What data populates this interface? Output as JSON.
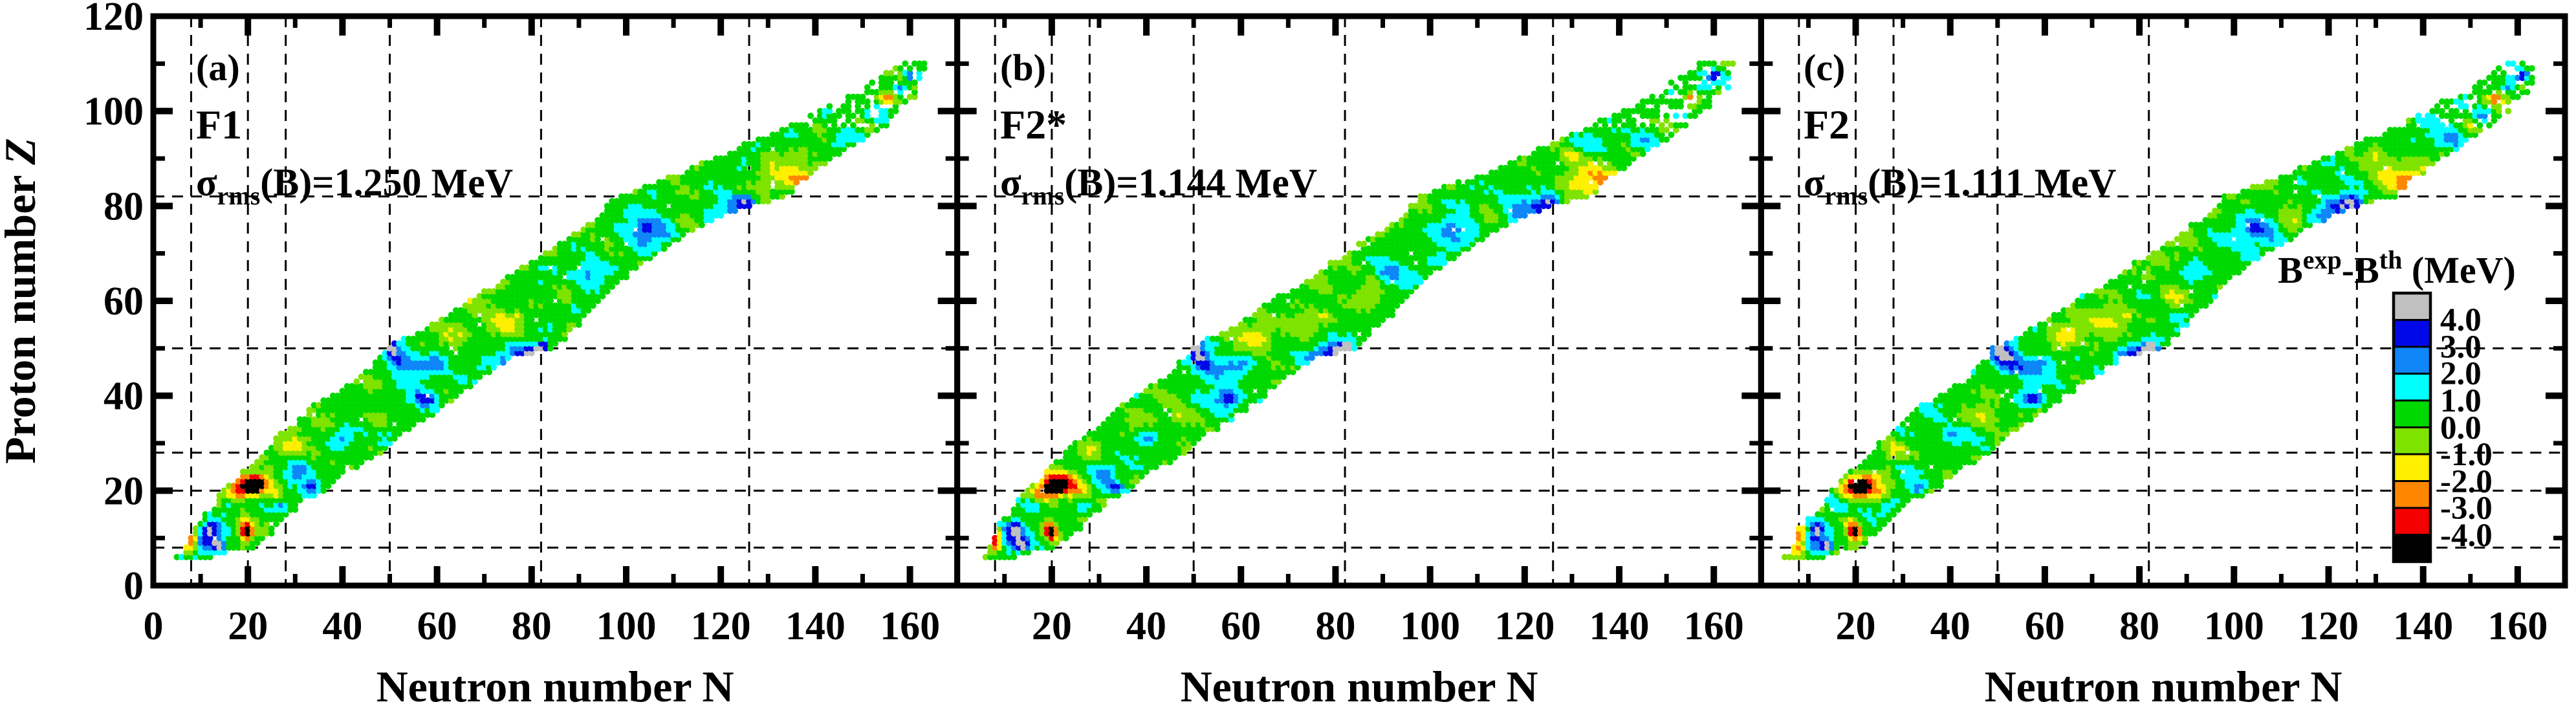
{
  "figure": {
    "kind": "nuclear mass-table residuals chart",
    "background": "#ffffff"
  },
  "panels": [
    {
      "tag": "(a)",
      "model": "F1",
      "sigma": {
        "symbol": "σ",
        "sub": "rms",
        "rest": "(B)=1.250 MeV"
      }
    },
    {
      "tag": "(b)",
      "model": "F2*",
      "sigma": {
        "symbol": "σ",
        "sub": "rms",
        "rest": "(B)=1.144 MeV"
      }
    },
    {
      "tag": "(c)",
      "model": "F2",
      "sigma": {
        "symbol": "σ",
        "sub": "rms",
        "rest": "(B)=1.111 MeV"
      }
    }
  ],
  "axes": {
    "x": {
      "label_main": "Neutron number ",
      "label_symbol": "N",
      "range": [
        0,
        170
      ],
      "tick_labels": [
        "0",
        "20",
        "40",
        "60",
        "80",
        "100",
        "120",
        "140",
        "160"
      ],
      "major_tick_values": [
        0,
        20,
        40,
        60,
        80,
        100,
        120,
        140,
        160
      ],
      "minor_tick_values": [
        10,
        30,
        50,
        70,
        90,
        110,
        130,
        150
      ],
      "gridlines": [
        8,
        20,
        28,
        50,
        82,
        126
      ]
    },
    "y": {
      "label_main": "Proton number ",
      "label_symbol": "Z",
      "range": [
        0,
        120
      ],
      "tick_labels": [
        "0",
        "20",
        "40",
        "60",
        "80",
        "100",
        "120"
      ],
      "major_tick_values": [
        20,
        40,
        60,
        80,
        100
      ],
      "minor_tick_values": [
        10,
        30,
        50,
        70,
        90,
        110
      ],
      "gridlines": [
        8,
        20,
        28,
        50,
        82
      ]
    }
  },
  "colorbar": {
    "title": {
      "base1": "B",
      "sup1": "exp",
      "base2": "-B",
      "sup2": "th",
      "base3": " (MeV)"
    },
    "boundary_labels": [
      "4.0",
      "3.0",
      "2.0",
      "1.0",
      "0.0",
      "-1.0",
      "-2.0",
      "-3.0",
      "-4.0"
    ]
  },
  "chart_data": {
    "type": "scatter",
    "title": "",
    "xlabel": "Neutron number N",
    "ylabel": "Proton number Z",
    "value_label": "Bexp-Bth (MeV)",
    "xlim": [
      0,
      170
    ],
    "ylim": [
      0,
      120
    ],
    "grid": "dashed lines at magic numbers",
    "legend_position": "inset lower-right of panel (c)",
    "magic_numbers": {
      "N": [
        8,
        20,
        28,
        50,
        82,
        126
      ],
      "Z": [
        8,
        20,
        28,
        50,
        82
      ]
    },
    "panels": [
      {
        "tag": "(a)",
        "model": "F1",
        "sigma_rms_MeV": 1.25
      },
      {
        "tag": "(b)",
        "model": "F2*",
        "sigma_rms_MeV": 1.144
      },
      {
        "tag": "(c)",
        "model": "F2",
        "sigma_rms_MeV": 1.111
      }
    ],
    "color_bins": {
      "boundaries_MeV": [
        -4.0,
        -3.0,
        -2.0,
        -1.0,
        0.0,
        1.0,
        2.0,
        3.0,
        4.0
      ],
      "colors_low_to_high": [
        "#000000",
        "#f40000",
        "#ff8600",
        "#ffef00",
        "#7fe300",
        "#00d900",
        "#00ffff",
        "#0e86f8",
        "#0008e8",
        "#c0c0c0"
      ]
    },
    "band_NminNmax_by_Z": [
      [
        6,
        6,
        12
      ],
      [
        7,
        7,
        15
      ],
      [
        8,
        7,
        20
      ],
      [
        10,
        8,
        22
      ],
      [
        12,
        9,
        25
      ],
      [
        14,
        11,
        27
      ],
      [
        16,
        13,
        29
      ],
      [
        18,
        14,
        31
      ],
      [
        20,
        15,
        36
      ],
      [
        22,
        18,
        38
      ],
      [
        24,
        20,
        40
      ],
      [
        26,
        22,
        44
      ],
      [
        28,
        24,
        48
      ],
      [
        30,
        26,
        50
      ],
      [
        32,
        28,
        52
      ],
      [
        34,
        31,
        55
      ],
      [
        36,
        33,
        58
      ],
      [
        38,
        35,
        61
      ],
      [
        40,
        38,
        64
      ],
      [
        42,
        42,
        66
      ],
      [
        44,
        45,
        69
      ],
      [
        46,
        47,
        72
      ],
      [
        48,
        49,
        75
      ],
      [
        50,
        50,
        84
      ],
      [
        52,
        54,
        86
      ],
      [
        54,
        58,
        88
      ],
      [
        56,
        61,
        90
      ],
      [
        58,
        64,
        92
      ],
      [
        60,
        67,
        94
      ],
      [
        62,
        71,
        96
      ],
      [
        64,
        74,
        98
      ],
      [
        66,
        77,
        100
      ],
      [
        68,
        80,
        103
      ],
      [
        70,
        83,
        106
      ],
      [
        72,
        86,
        109
      ],
      [
        74,
        89,
        112
      ],
      [
        76,
        92,
        116
      ],
      [
        78,
        95,
        120
      ],
      [
        80,
        97,
        125
      ],
      [
        82,
        99,
        133
      ],
      [
        84,
        104,
        135
      ],
      [
        86,
        110,
        137
      ],
      [
        88,
        115,
        140
      ],
      [
        90,
        119,
        143
      ],
      [
        92,
        124,
        146
      ],
      [
        94,
        128,
        149
      ],
      [
        96,
        133,
        152
      ],
      [
        98,
        137,
        155
      ],
      [
        100,
        141,
        157
      ],
      [
        102,
        145,
        159
      ],
      [
        104,
        149,
        161
      ],
      [
        106,
        152,
        162
      ],
      [
        108,
        155,
        163
      ],
      [
        110,
        158,
        163
      ]
    ],
    "base_value_MeV": 0.5,
    "deviation_features_NZsnszAmp": [
      [
        11.5,
        10.5,
        2.1,
        2.1,
        3.6
      ],
      [
        12.5,
        12.5,
        1.0,
        1.0,
        2.0
      ],
      [
        14,
        8.5,
        0.8,
        0.7,
        4.6
      ],
      [
        8.5,
        10.5,
        1.1,
        1.4,
        -3.6
      ],
      [
        8,
        8,
        1.0,
        0.9,
        -2.0
      ],
      [
        20,
        11,
        0.8,
        0.9,
        -5.8
      ],
      [
        19.5,
        12.5,
        1.1,
        1.1,
        -3.4
      ],
      [
        16,
        17,
        1.5,
        1.3,
        2.0
      ],
      [
        21,
        20.5,
        1.1,
        0.9,
        -5.6
      ],
      [
        20,
        21.5,
        1.7,
        1.5,
        -3.6
      ],
      [
        23,
        22,
        1.5,
        1.3,
        -3.2
      ],
      [
        17.5,
        19.5,
        1.5,
        1.5,
        -2.4
      ],
      [
        25.5,
        20,
        1.8,
        1.5,
        -2.0
      ],
      [
        28.5,
        29,
        1.7,
        1.3,
        -1.6
      ],
      [
        33.5,
        20.8,
        1.2,
        0.9,
        3.0
      ],
      [
        31,
        24,
        2.0,
        1.7,
        1.7
      ],
      [
        27,
        17,
        1.4,
        1.1,
        1.6
      ],
      [
        40.5,
        31.5,
        1.7,
        1.3,
        1.8
      ],
      [
        47,
        35.5,
        1.8,
        1.2,
        -1.5
      ],
      [
        57,
        39.5,
        1.8,
        1.3,
        2.6
      ],
      [
        58.5,
        39.5,
        1.1,
        0.9,
        1.6
      ],
      [
        50.5,
        50.3,
        0.8,
        0.7,
        4.4
      ],
      [
        51,
        48.5,
        1.6,
        1.3,
        3.0
      ],
      [
        52.5,
        46.5,
        2.0,
        1.6,
        1.9
      ],
      [
        56,
        45.5,
        2.8,
        2.2,
        1.5
      ],
      [
        60,
        47,
        2.0,
        1.6,
        1.2
      ],
      [
        52,
        52.5,
        1.8,
        1.3,
        1.4
      ],
      [
        64,
        52.5,
        2.5,
        1.9,
        -1.7
      ],
      [
        74,
        55.5,
        2.8,
        2.0,
        -1.8
      ],
      [
        77.5,
        57,
        0.7,
        0.6,
        -1.5
      ],
      [
        82.5,
        50.5,
        0.8,
        0.7,
        4.4
      ],
      [
        81,
        49,
        1.5,
        1.2,
        3.2
      ],
      [
        78.5,
        48.5,
        2.2,
        1.7,
        1.9
      ],
      [
        76,
        47,
        2.6,
        1.9,
        1.2
      ],
      [
        87,
        61,
        2.2,
        1.7,
        -1.5
      ],
      [
        92,
        66,
        2.2,
        1.7,
        1.7
      ],
      [
        105,
        75,
        3.4,
        2.5,
        1.9
      ],
      [
        104.5,
        75.5,
        1.3,
        1.0,
        1.0
      ],
      [
        113,
        77,
        2.4,
        1.7,
        -1.8
      ],
      [
        125.5,
        81,
        1.5,
        1.2,
        3.2
      ],
      [
        123,
        79.5,
        2.1,
        1.7,
        2.2
      ],
      [
        118.5,
        77,
        2.8,
        2.0,
        1.7
      ],
      [
        133,
        86.5,
        4.2,
        2.6,
        -1.8
      ],
      [
        137.5,
        85.5,
        1.9,
        1.4,
        -1.7
      ],
      [
        139.5,
        85,
        0.6,
        0.5,
        -2.2
      ],
      [
        130,
        90.5,
        1.3,
        1.0,
        -1.7
      ],
      [
        146,
        94,
        2.4,
        1.7,
        1.7
      ],
      [
        152.5,
        99,
        1.7,
        1.3,
        1.6
      ],
      [
        155.5,
        102.5,
        1.2,
        0.9,
        -3.1
      ],
      [
        150,
        97,
        1.4,
        1.0,
        -1.5
      ],
      [
        160.5,
        107.5,
        1.2,
        0.9,
        3.3
      ],
      [
        158,
        105,
        1.1,
        0.8,
        1.7
      ]
    ],
    "dot_radius_units": 0.68
  }
}
